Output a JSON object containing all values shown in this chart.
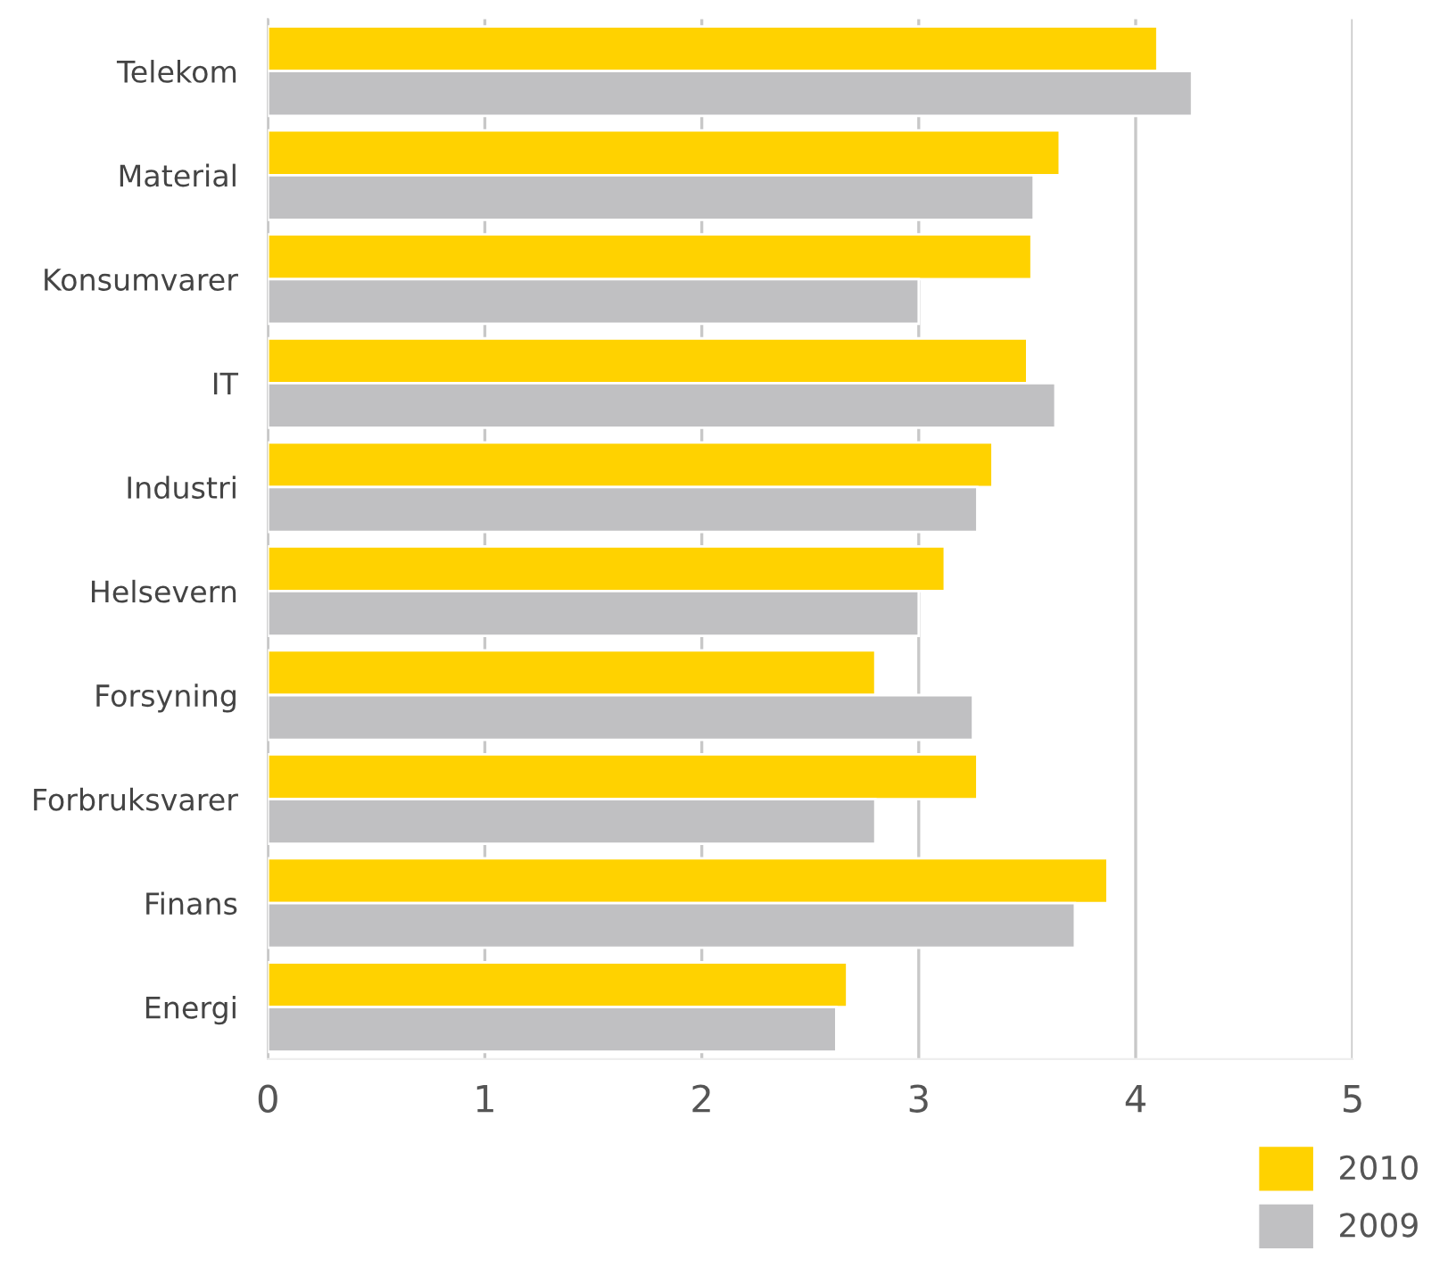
{
  "chart_data": {
    "type": "bar",
    "orientation": "horizontal",
    "categories": [
      "Telekom",
      "Material",
      "Konsumvarer",
      "IT",
      "Industri",
      "Helsevern",
      "Forsyning",
      "Forbruksvarer",
      "Finans",
      "Energi"
    ],
    "series": [
      {
        "name": "2010",
        "color": "#ffd200",
        "values": [
          4.1,
          3.65,
          3.52,
          3.5,
          3.34,
          3.12,
          2.8,
          3.27,
          3.87,
          2.67
        ]
      },
      {
        "name": "2009",
        "color": "#c0c0c2",
        "values": [
          4.26,
          3.53,
          3.0,
          3.63,
          3.27,
          3.0,
          3.25,
          2.8,
          3.72,
          2.62
        ]
      }
    ],
    "xlim": [
      0,
      5
    ],
    "xticks": [
      0,
      1,
      2,
      3,
      4,
      5
    ],
    "grid": "x",
    "legend": "bottom right"
  }
}
